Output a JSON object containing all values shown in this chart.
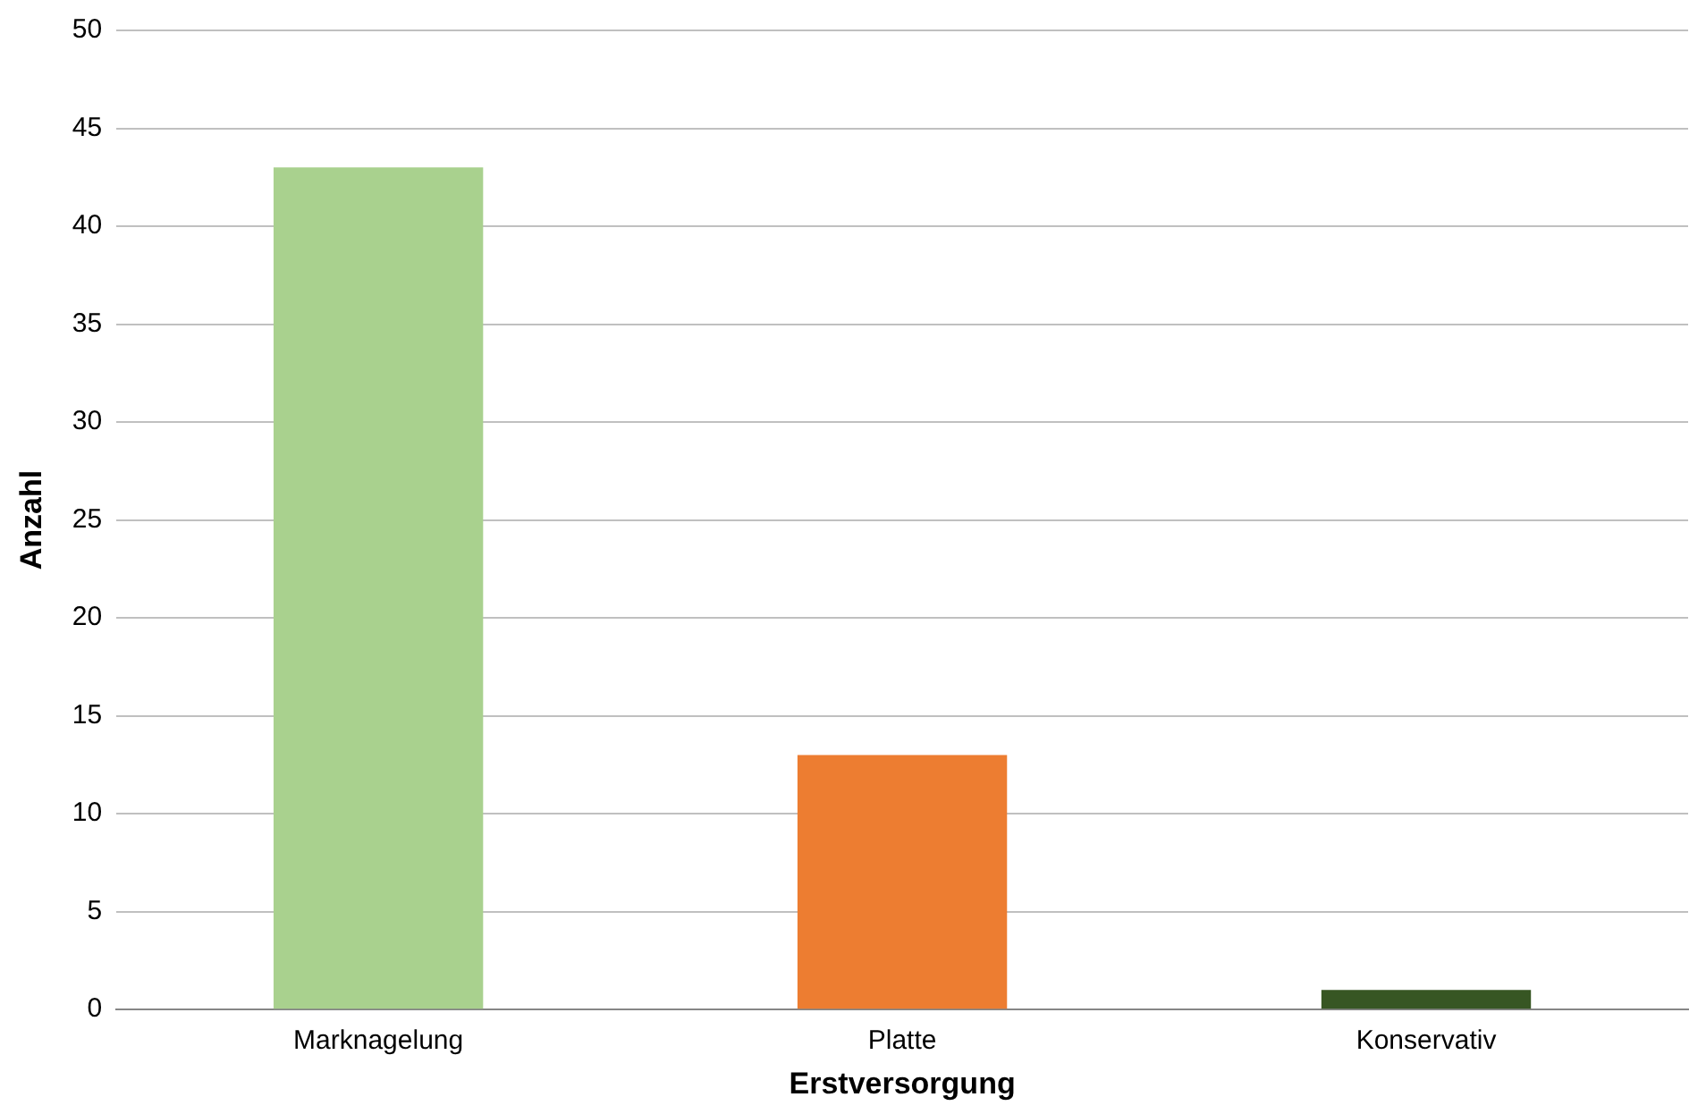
{
  "chart_data": {
    "type": "bar",
    "xlabel": "Erstversorgung",
    "ylabel": "Anzahl",
    "categories": [
      "Marknagelung",
      "Platte",
      "Konservativ"
    ],
    "values": [
      43,
      13,
      1
    ],
    "colors": [
      "#a9d18e",
      "#ed7d31",
      "#375623"
    ],
    "ylim": [
      0,
      50
    ],
    "yticks": [
      0,
      5,
      10,
      15,
      20,
      25,
      30,
      35,
      40,
      45,
      50
    ],
    "grid": "y",
    "legend": false
  }
}
